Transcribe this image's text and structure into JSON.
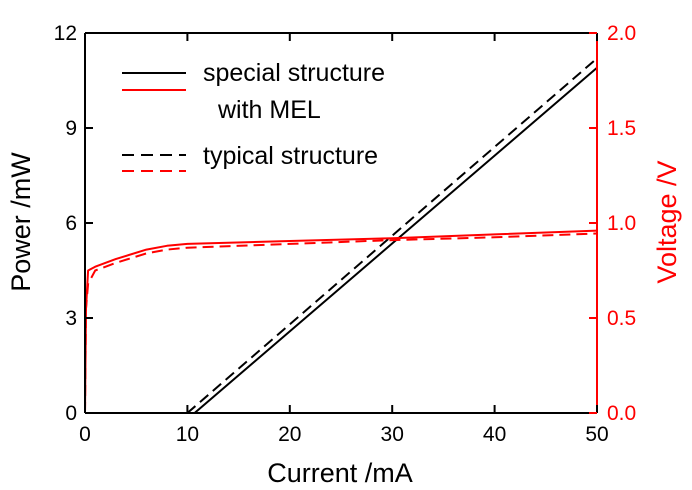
{
  "chart_data": {
    "type": "line",
    "xlabel": "Current /mA",
    "ylabel_left": "Power /mW",
    "ylabel_right": "Voltage /V",
    "xlim": [
      0,
      50
    ],
    "ylim_left": [
      0,
      12
    ],
    "ylim_right": [
      0.0,
      2.0
    ],
    "xticks": [
      "0",
      "10",
      "20",
      "30",
      "40",
      "50"
    ],
    "yticks_left": [
      "0",
      "3",
      "6",
      "9",
      "12"
    ],
    "yticks_right": [
      "0.0",
      "0.5",
      "1.0",
      "1.5",
      "2.0"
    ],
    "grid": false,
    "legend_placement": "top-left",
    "legend": {
      "group1_line1": "special structure",
      "group1_line2": "with MEL",
      "group2": "typical structure"
    },
    "colors": {
      "power": "#000000",
      "voltage": "#ff0000",
      "axis_left": "#000000",
      "axis_right": "#ff0000"
    },
    "series": [
      {
        "axis": "left",
        "color": "#000000",
        "dash": false,
        "x": [
          0,
          10.7,
          50
        ],
        "y": [
          0,
          0,
          10.9
        ]
      },
      {
        "axis": "left",
        "color": "#000000",
        "dash": true,
        "x": [
          0,
          10,
          50
        ],
        "y": [
          0,
          0,
          11.2
        ]
      },
      {
        "axis": "right",
        "color": "#ff0000",
        "dash": false,
        "x": [
          0,
          0.1,
          0.3,
          1,
          3,
          6,
          8,
          10,
          20,
          30,
          40,
          50
        ],
        "y": [
          0,
          0.55,
          0.75,
          0.77,
          0.81,
          0.86,
          0.88,
          0.89,
          0.905,
          0.92,
          0.94,
          0.96
        ]
      },
      {
        "axis": "right",
        "color": "#ff0000",
        "dash": true,
        "x": [
          0,
          0.1,
          0.3,
          1,
          3,
          6,
          8,
          10,
          20,
          30,
          40,
          50
        ],
        "y": [
          0,
          0.55,
          0.68,
          0.75,
          0.79,
          0.84,
          0.86,
          0.87,
          0.89,
          0.91,
          0.925,
          0.945
        ]
      }
    ]
  }
}
